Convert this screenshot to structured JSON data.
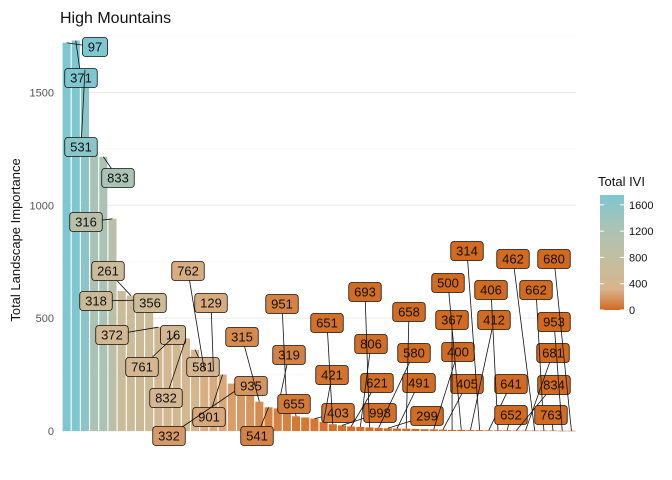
{
  "chart_data": {
    "type": "bar",
    "title": "High Mountains",
    "ylabel": "Total Landscape Importance",
    "xlabel": "",
    "ylim": [
      0,
      1750
    ],
    "yticks": [
      0,
      500,
      1000,
      1500
    ],
    "grid": true,
    "legend": {
      "title": "Total IVI",
      "placement": "right",
      "ticks": [
        0,
        400,
        800,
        1200,
        1600
      ],
      "colors": [
        "#d2691e",
        "#d9b48c",
        "#c2bfa0",
        "#a9c3b6",
        "#7ec6d0"
      ]
    },
    "categories": [
      "97",
      "371",
      "531",
      "",
      "833",
      "316",
      "",
      "261",
      "318",
      "356",
      "372",
      "16",
      "761",
      "832",
      "581",
      "762",
      "129",
      "901",
      "",
      "332",
      "935",
      "315",
      "541",
      "319",
      "951",
      "655",
      "",
      "403",
      "421",
      "651",
      "998",
      "621",
      "806",
      "693",
      "580",
      "299",
      "491",
      "658",
      "",
      "",
      "400",
      "405",
      "367",
      "500",
      "412",
      "314",
      "641",
      "406",
      "652",
      "834",
      "681",
      "462",
      "662",
      "763",
      "953",
      "680"
    ],
    "values": [
      1720,
      1730,
      1600,
      1230,
      1215,
      940,
      620,
      600,
      580,
      560,
      460,
      450,
      430,
      410,
      360,
      270,
      265,
      250,
      210,
      195,
      175,
      130,
      105,
      100,
      95,
      65,
      60,
      55,
      40,
      30,
      25,
      20,
      18,
      16,
      14,
      12,
      11,
      10,
      9,
      8,
      7,
      6,
      5,
      5,
      4,
      4,
      3,
      3,
      3,
      2,
      2,
      2,
      2,
      2,
      1,
      1
    ]
  }
}
